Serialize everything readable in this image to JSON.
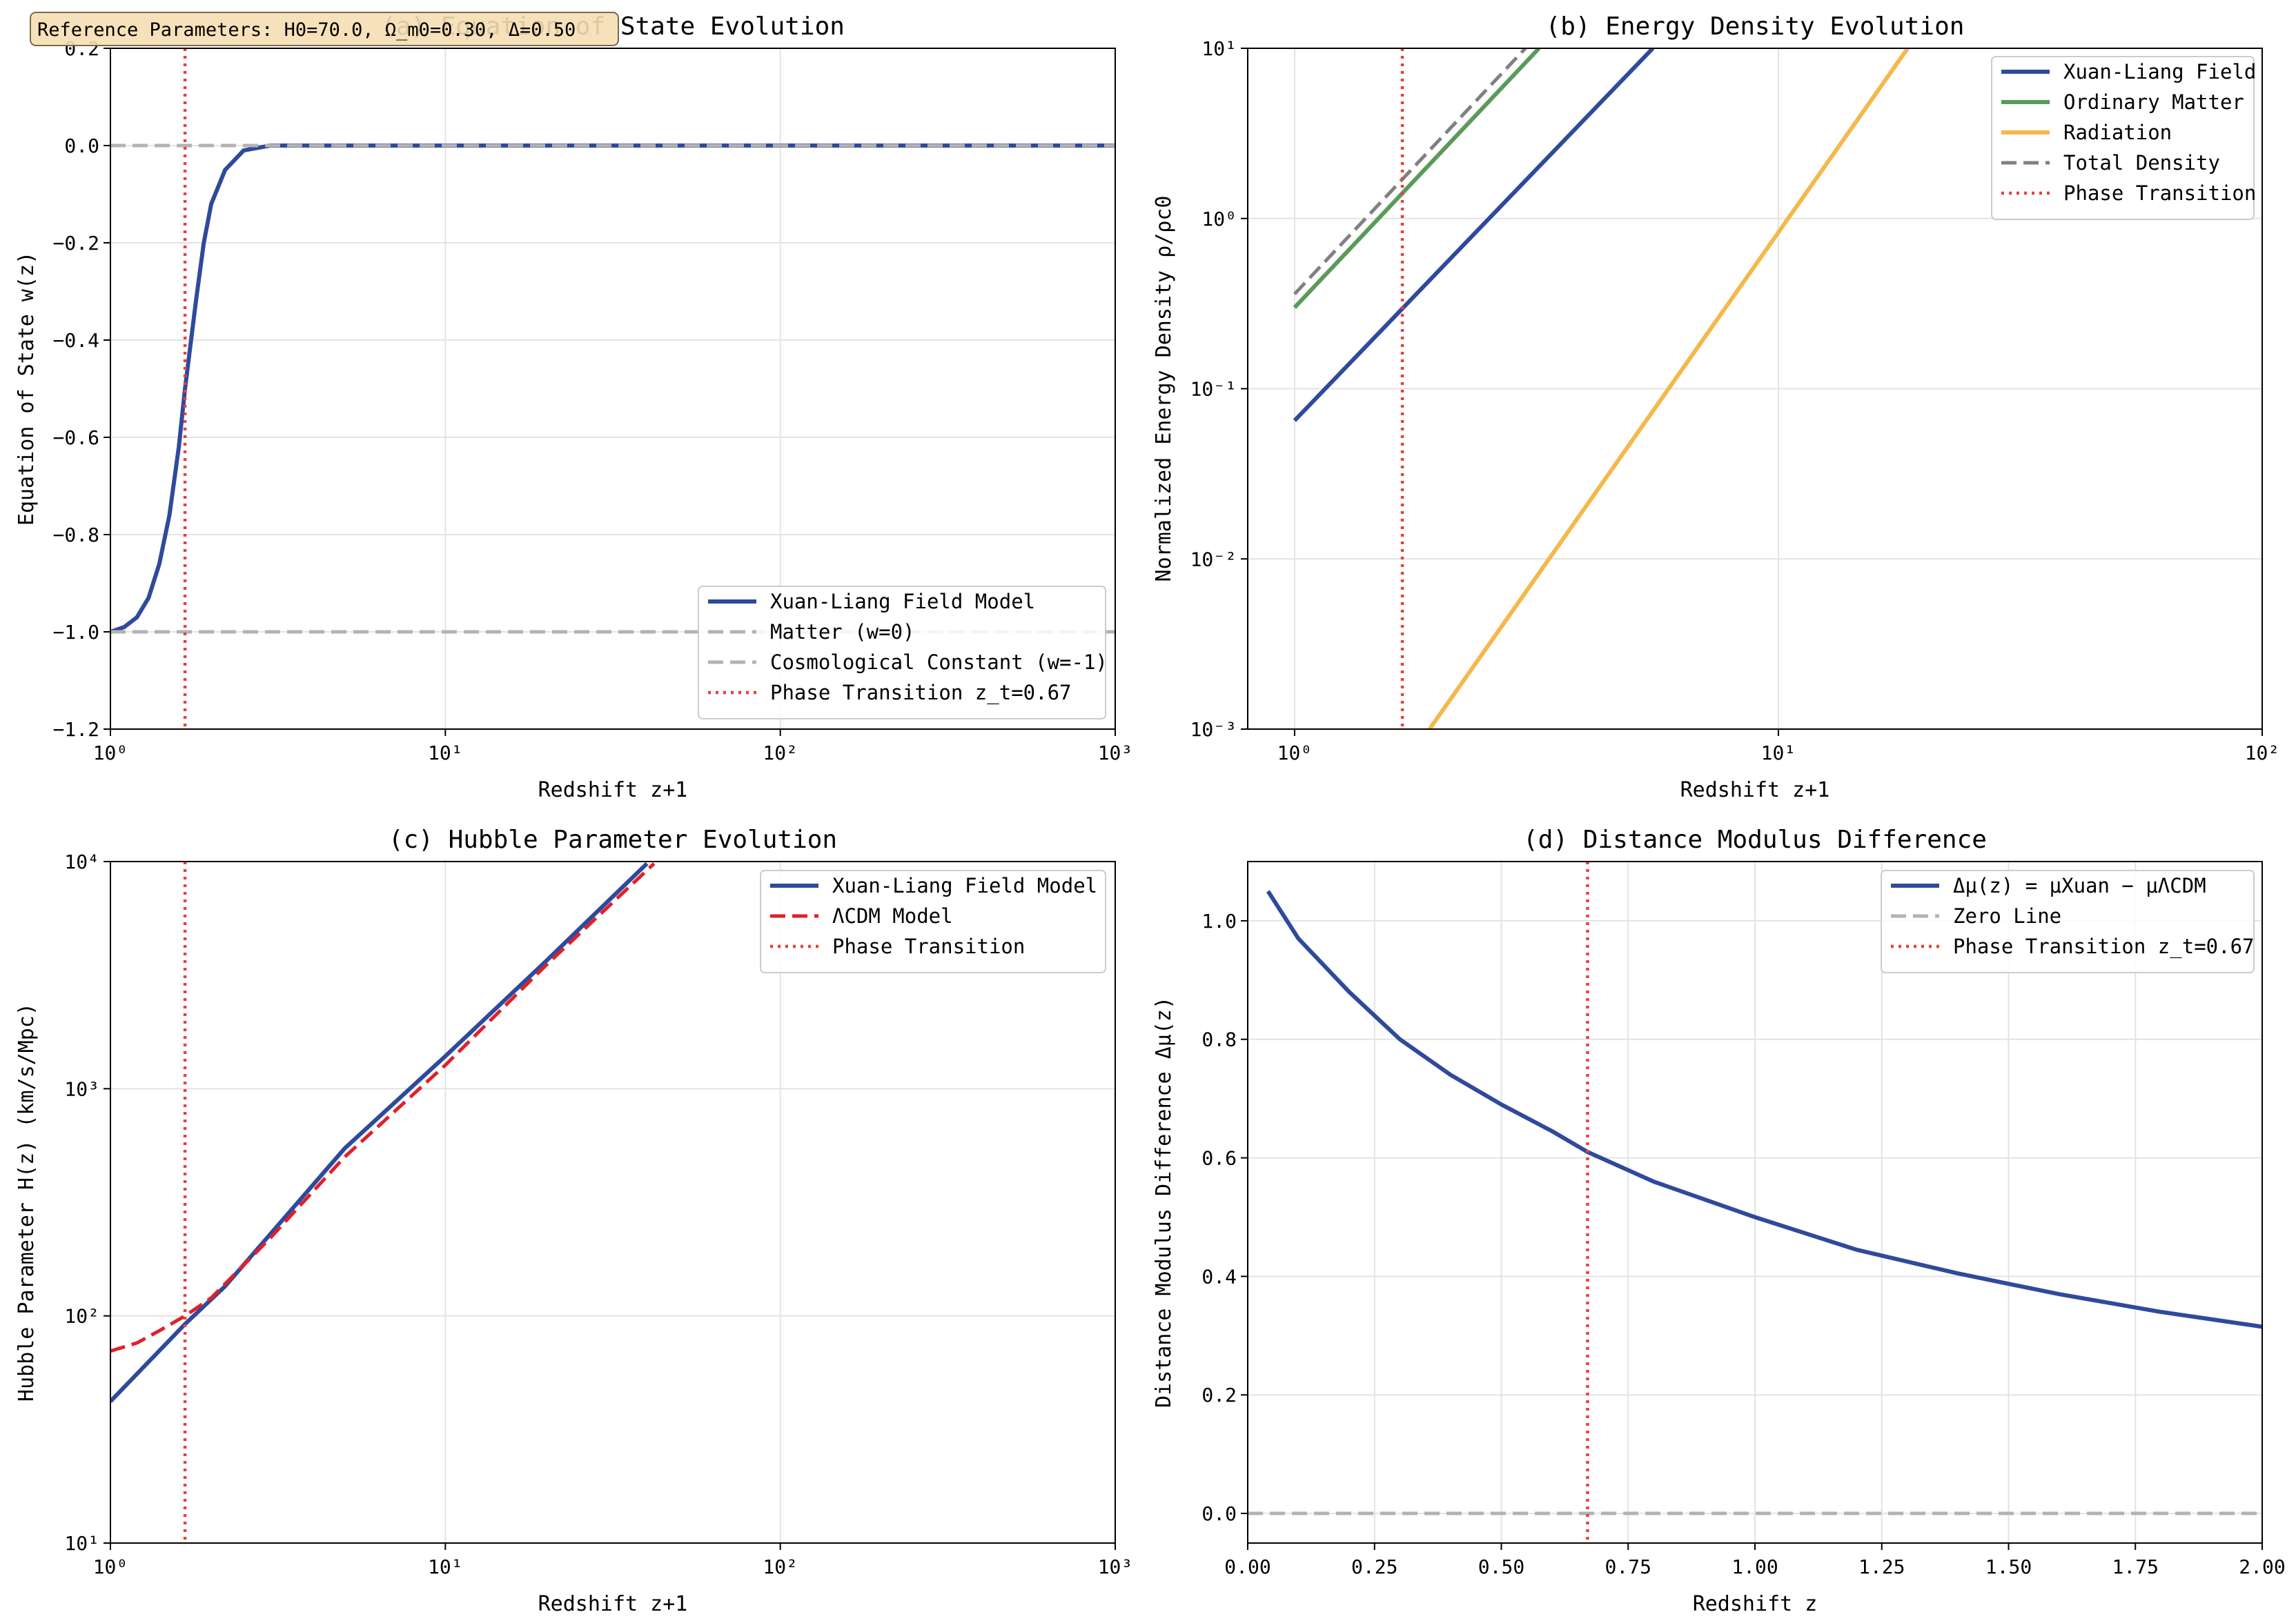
{
  "annotation": "Reference Parameters: H0=70.0, Ω_m0=0.30, Δ=0.50",
  "colors": {
    "xuan": "#2f4a9c",
    "matter_line": "#b3b3b3",
    "ordinary": "#5a9a5a",
    "radiation": "#f5b84b",
    "total": "#808080",
    "transition": "#e8403a",
    "lcdm": "#e0202a",
    "grid": "#e3e3e3",
    "annotation_bg": "#f5deb3"
  },
  "chart_data": [
    {
      "id": "a",
      "type": "line",
      "title": "(a) Equation of State Evolution",
      "xlabel": "Redshift z+1",
      "ylabel": "Equation of State w(z)",
      "xscale": "log",
      "xlim": [
        1,
        1000
      ],
      "ylim": [
        -1.2,
        0.2
      ],
      "xticks": [
        {
          "v": 1,
          "t": "10⁰"
        },
        {
          "v": 10,
          "t": "10¹"
        },
        {
          "v": 100,
          "t": "10²"
        },
        {
          "v": 1000,
          "t": "10³"
        }
      ],
      "yticks": [
        {
          "v": 0.2,
          "t": "0.2"
        },
        {
          "v": 0.0,
          "t": "0.0"
        },
        {
          "v": -0.2,
          "t": "−0.2"
        },
        {
          "v": -0.4,
          "t": "−0.4"
        },
        {
          "v": -0.6,
          "t": "−0.6"
        },
        {
          "v": -0.8,
          "t": "−0.8"
        },
        {
          "v": -1.0,
          "t": "−1.0"
        },
        {
          "v": -1.2,
          "t": "−1.2"
        }
      ],
      "grid": true,
      "legend_position": "lower-right",
      "series": [
        {
          "name": "Xuan-Liang Field Model",
          "style": "solid",
          "color": "#2f4a9c",
          "x": [
            1.0,
            1.1,
            1.2,
            1.3,
            1.4,
            1.5,
            1.6,
            1.67,
            1.8,
            1.9,
            2.0,
            2.2,
            2.5,
            3.0,
            5.0,
            1000.0
          ],
          "y": [
            -1.0,
            -0.99,
            -0.97,
            -0.93,
            -0.86,
            -0.76,
            -0.62,
            -0.5,
            -0.32,
            -0.2,
            -0.12,
            -0.05,
            -0.01,
            0.0,
            0.0,
            0.0
          ]
        },
        {
          "name": "Matter (w=0)",
          "style": "dashed",
          "color": "#b3b3b3",
          "x": [
            1,
            1000
          ],
          "y": [
            0,
            0
          ]
        },
        {
          "name": "Cosmological Constant (w=-1)",
          "style": "dashed",
          "color": "#b3b3b3",
          "x": [
            1,
            1000
          ],
          "y": [
            -1,
            -1
          ]
        },
        {
          "name": "Phase Transition z_t=0.67",
          "style": "dotted",
          "color": "#e8403a",
          "vline": 1.67
        }
      ]
    },
    {
      "id": "b",
      "type": "line",
      "title": "(b) Energy Density Evolution",
      "xlabel": "Redshift z+1",
      "ylabel": "Normalized Energy Density ρ/ρc0",
      "xscale": "log",
      "yscale": "log",
      "xlim": [
        0.8,
        100
      ],
      "ylim": [
        0.001,
        10
      ],
      "xticks": [
        {
          "v": 1,
          "t": "10⁰"
        },
        {
          "v": 10,
          "t": "10¹"
        },
        {
          "v": 100,
          "t": "10²"
        }
      ],
      "yticks": [
        {
          "v": 10,
          "t": "10¹"
        },
        {
          "v": 1,
          "t": "10⁰"
        },
        {
          "v": 0.1,
          "t": "10⁻¹"
        },
        {
          "v": 0.01,
          "t": "10⁻²"
        },
        {
          "v": 0.001,
          "t": "10⁻³"
        }
      ],
      "grid": true,
      "legend_position": "upper-right",
      "series": [
        {
          "name": "Xuan-Liang Field",
          "style": "solid",
          "color": "#2f4a9c",
          "x": [
            1.0,
            5.5
          ],
          "y": [
            0.065,
            10
          ]
        },
        {
          "name": "Ordinary Matter",
          "style": "solid",
          "color": "#5a9a5a",
          "x": [
            1.0,
            3.2
          ],
          "y": [
            0.3,
            10
          ]
        },
        {
          "name": "Radiation",
          "style": "solid",
          "color": "#f5b84b",
          "x": [
            1.9,
            18.5
          ],
          "y": [
            0.001,
            10
          ]
        },
        {
          "name": "Total Density",
          "style": "dashed",
          "color": "#808080",
          "x": [
            1.0,
            3.0
          ],
          "y": [
            0.36,
            10
          ]
        },
        {
          "name": "Phase Transition",
          "style": "dotted",
          "color": "#e8403a",
          "vline": 1.67
        }
      ]
    },
    {
      "id": "c",
      "type": "line",
      "title": "(c) Hubble Parameter Evolution",
      "xlabel": "Redshift z+1",
      "ylabel": "Hubble Parameter H(z) (km/s/Mpc)",
      "xscale": "log",
      "yscale": "log",
      "xlim": [
        1,
        1000
      ],
      "ylim": [
        10,
        10000
      ],
      "xticks": [
        {
          "v": 1,
          "t": "10⁰"
        },
        {
          "v": 10,
          "t": "10¹"
        },
        {
          "v": 100,
          "t": "10²"
        },
        {
          "v": 1000,
          "t": "10³"
        }
      ],
      "yticks": [
        {
          "v": 10000,
          "t": "10⁴"
        },
        {
          "v": 1000,
          "t": "10³"
        },
        {
          "v": 100,
          "t": "10²"
        },
        {
          "v": 10,
          "t": "10¹"
        }
      ],
      "grid": true,
      "legend_position": "upper-right",
      "series": [
        {
          "name": "Xuan-Liang Field Model",
          "style": "solid",
          "color": "#2f4a9c",
          "x": [
            1.0,
            1.67,
            2.2,
            5.0,
            10.0,
            20.0,
            40.0
          ],
          "y": [
            42,
            92,
            135,
            545,
            1390,
            3650,
            9800
          ]
        },
        {
          "name": "ΛCDM Model",
          "style": "dashed",
          "color": "#e0202a",
          "x": [
            1.0,
            1.2,
            1.4,
            1.67,
            2.0,
            3.0,
            5.0,
            10.0,
            20.0,
            42.0
          ],
          "y": [
            70,
            76,
            86,
            100,
            120,
            220,
            500,
            1270,
            3500,
            9800
          ]
        },
        {
          "name": "Phase Transition",
          "style": "dotted",
          "color": "#e8403a",
          "vline": 1.67
        }
      ]
    },
    {
      "id": "d",
      "type": "line",
      "title": "(d) Distance Modulus Difference",
      "xlabel": "Redshift z",
      "ylabel": "Distance Modulus Difference Δμ(z)",
      "xlim": [
        0.0,
        2.0
      ],
      "ylim": [
        -0.05,
        1.1
      ],
      "xticks": [
        {
          "v": 0,
          "t": "0.00"
        },
        {
          "v": 0.25,
          "t": "0.25"
        },
        {
          "v": 0.5,
          "t": "0.50"
        },
        {
          "v": 0.75,
          "t": "0.75"
        },
        {
          "v": 1.0,
          "t": "1.00"
        },
        {
          "v": 1.25,
          "t": "1.25"
        },
        {
          "v": 1.5,
          "t": "1.50"
        },
        {
          "v": 1.75,
          "t": "1.75"
        },
        {
          "v": 2.0,
          "t": "2.00"
        }
      ],
      "yticks": [
        {
          "v": 0.0,
          "t": "0.0"
        },
        {
          "v": 0.2,
          "t": "0.2"
        },
        {
          "v": 0.4,
          "t": "0.4"
        },
        {
          "v": 0.6,
          "t": "0.6"
        },
        {
          "v": 0.8,
          "t": "0.8"
        },
        {
          "v": 1.0,
          "t": "1.0"
        }
      ],
      "grid": true,
      "legend_position": "upper-right",
      "series": [
        {
          "name": "Δμ(z) = μXuan − μΛCDM",
          "style": "solid",
          "color": "#2f4a9c",
          "x": [
            0.04,
            0.1,
            0.2,
            0.3,
            0.4,
            0.5,
            0.6,
            0.67,
            0.8,
            1.0,
            1.2,
            1.4,
            1.6,
            1.8,
            2.0
          ],
          "y": [
            1.05,
            0.97,
            0.88,
            0.8,
            0.74,
            0.69,
            0.645,
            0.61,
            0.56,
            0.5,
            0.445,
            0.405,
            0.37,
            0.34,
            0.315
          ]
        },
        {
          "name": "Zero Line",
          "style": "dashed",
          "color": "#b3b3b3",
          "x": [
            0,
            2
          ],
          "y": [
            0,
            0
          ]
        },
        {
          "name": "Phase Transition z_t=0.67",
          "style": "dotted",
          "color": "#e8403a",
          "vline": 0.67
        }
      ]
    }
  ]
}
